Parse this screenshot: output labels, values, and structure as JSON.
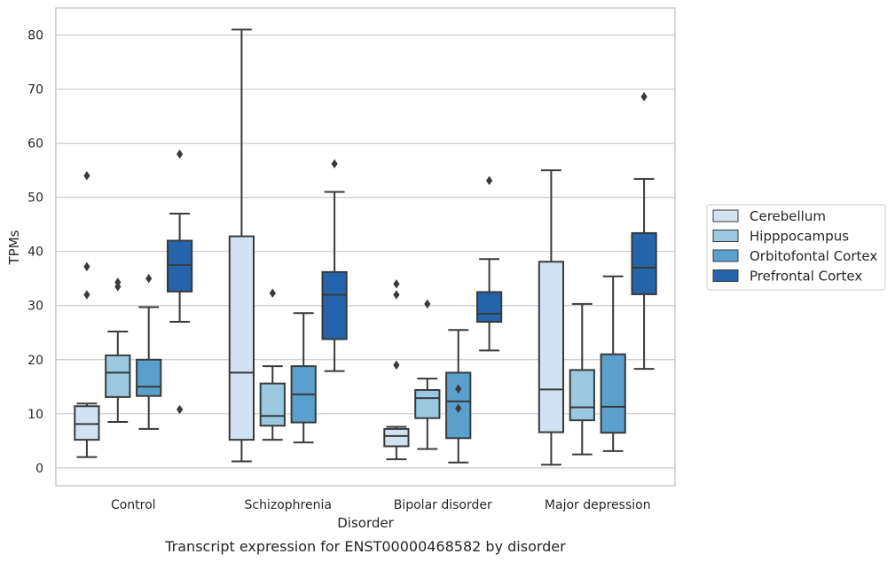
{
  "chart_data": {
    "type": "boxplot",
    "caption": "Transcript expression for ENST00000468582 by disorder",
    "xlabel": "Disorder",
    "ylabel": "TPMs",
    "ylim": [
      -3.3,
      85
    ],
    "yticks": [
      0,
      10,
      20,
      30,
      40,
      50,
      60,
      70,
      80
    ],
    "grid": "horizontal",
    "legend_position": "right",
    "categories": [
      "Control",
      "Schizophrenia",
      "Bipolar disorder",
      "Major depression"
    ],
    "series": [
      {
        "name": "Cerebellum",
        "color": "#d2e2f2",
        "boxes": [
          {
            "whisker_low": 2.0,
            "q1": 5.2,
            "median": 8.1,
            "q3": 11.4,
            "whisker_high": 11.9,
            "outliers": [
              32.0,
              37.2,
              54.0
            ]
          },
          {
            "whisker_low": 1.2,
            "q1": 5.2,
            "median": 17.6,
            "q3": 42.8,
            "whisker_high": 81.0,
            "outliers": []
          },
          {
            "whisker_low": 1.6,
            "q1": 4.0,
            "median": 5.9,
            "q3": 7.2,
            "whisker_high": 7.6,
            "outliers": [
              19.0,
              32.0,
              34.0
            ]
          },
          {
            "whisker_low": 0.6,
            "q1": 6.6,
            "median": 14.5,
            "q3": 38.1,
            "whisker_high": 55.0,
            "outliers": []
          }
        ]
      },
      {
        "name": "Hipppocampus",
        "color": "#9ac8e0",
        "boxes": [
          {
            "whisker_low": 8.5,
            "q1": 13.1,
            "median": 17.6,
            "q3": 20.8,
            "whisker_high": 25.2,
            "outliers": [
              33.5,
              34.3
            ]
          },
          {
            "whisker_low": 5.2,
            "q1": 7.8,
            "median": 9.6,
            "q3": 15.6,
            "whisker_high": 18.8,
            "outliers": [
              32.3
            ]
          },
          {
            "whisker_low": 3.5,
            "q1": 9.2,
            "median": 12.9,
            "q3": 14.4,
            "whisker_high": 16.5,
            "outliers": [
              30.3
            ]
          },
          {
            "whisker_low": 2.5,
            "q1": 8.8,
            "median": 11.2,
            "q3": 18.1,
            "whisker_high": 30.3,
            "outliers": []
          }
        ]
      },
      {
        "name": "Orbitofontal Cortex",
        "color": "#5aa0cd",
        "boxes": [
          {
            "whisker_low": 7.2,
            "q1": 13.3,
            "median": 15.0,
            "q3": 20.0,
            "whisker_high": 29.7,
            "outliers": [
              35.0
            ]
          },
          {
            "whisker_low": 4.7,
            "q1": 8.4,
            "median": 13.6,
            "q3": 18.8,
            "whisker_high": 28.6,
            "outliers": []
          },
          {
            "whisker_low": 1.0,
            "q1": 5.5,
            "median": 12.3,
            "q3": 17.6,
            "whisker_high": 25.5,
            "outliers": [
              11.0,
              14.6
            ]
          },
          {
            "whisker_low": 3.1,
            "q1": 6.5,
            "median": 11.3,
            "q3": 21.0,
            "whisker_high": 35.4,
            "outliers": []
          }
        ]
      },
      {
        "name": "Prefrontal Cortex",
        "color": "#2464aa",
        "boxes": [
          {
            "whisker_low": 27.0,
            "q1": 32.6,
            "median": 37.5,
            "q3": 42.0,
            "whisker_high": 47.0,
            "outliers": [
              10.8,
              58.0
            ]
          },
          {
            "whisker_low": 17.9,
            "q1": 23.8,
            "median": 32.0,
            "q3": 36.2,
            "whisker_high": 51.0,
            "outliers": [
              56.2
            ]
          },
          {
            "whisker_low": 21.7,
            "q1": 27.0,
            "median": 28.5,
            "q3": 32.5,
            "whisker_high": 38.6,
            "outliers": [
              53.1
            ]
          },
          {
            "whisker_low": 18.3,
            "q1": 32.1,
            "median": 37.0,
            "q3": 43.4,
            "whisker_high": 53.4,
            "outliers": [
              68.6
            ]
          }
        ]
      }
    ]
  }
}
